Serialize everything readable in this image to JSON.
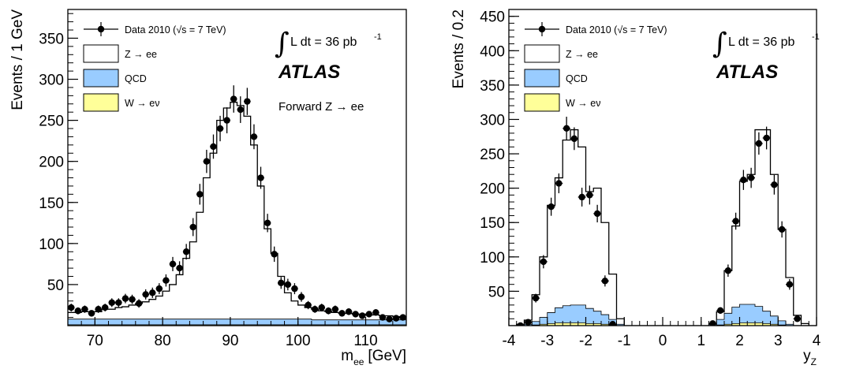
{
  "chart_data": [
    {
      "type": "histogram",
      "xlabel_main": "m",
      "xlabel_sub": "ee",
      "xlabel_unit": "[GeV]",
      "ylabel": "Events / 1 GeV",
      "xlim": [
        66,
        116
      ],
      "ylim": [
        0,
        385
      ],
      "xticks": [
        70,
        80,
        90,
        100,
        110
      ],
      "yticks": [
        50,
        100,
        150,
        200,
        250,
        300,
        350
      ],
      "grid": false,
      "legend_position": "top-left",
      "legend": [
        {
          "label": "Data 2010 (√s = 7 TeV)",
          "kind": "marker"
        },
        {
          "label": "Z → ee",
          "kind": "box",
          "color": "#ffffff"
        },
        {
          "label": "QCD",
          "kind": "box",
          "color": "#99ccff"
        },
        {
          "label": "W → eν",
          "kind": "box",
          "color": "#ffff99"
        }
      ],
      "lumi_integral": "∫",
      "lumi_text": "L dt = 36 pb",
      "lumi_exp": "-1",
      "experiment": "ATLAS",
      "region": "Forward Z → ee",
      "bin_edges": [
        66,
        67,
        68,
        69,
        70,
        71,
        72,
        73,
        74,
        75,
        76,
        77,
        78,
        79,
        80,
        81,
        82,
        83,
        84,
        85,
        86,
        87,
        88,
        89,
        90,
        91,
        92,
        93,
        94,
        95,
        96,
        97,
        98,
        99,
        100,
        101,
        102,
        103,
        104,
        105,
        106,
        107,
        108,
        109,
        110,
        111,
        112,
        113,
        114,
        115,
        116
      ],
      "mc_total": [
        16,
        16,
        17,
        17,
        17,
        20,
        20,
        22,
        23,
        25,
        27,
        29,
        32,
        36,
        42,
        50,
        62,
        82,
        102,
        138,
        180,
        210,
        250,
        265,
        272,
        268,
        255,
        220,
        170,
        118,
        88,
        60,
        40,
        30,
        25,
        22,
        20,
        18,
        17,
        16,
        15,
        15,
        14,
        14,
        13,
        13,
        12,
        12,
        11,
        10
      ],
      "qcd": [
        7,
        7,
        7,
        7,
        7,
        7,
        7,
        7,
        7,
        7,
        7,
        7,
        7,
        7,
        7,
        7,
        7,
        7,
        7,
        7,
        7,
        7,
        7,
        7,
        7,
        7,
        7,
        7,
        7,
        7,
        7,
        7,
        7,
        7,
        7,
        7,
        6,
        6,
        6,
        6,
        6,
        6,
        6,
        6,
        6,
        6,
        6,
        6,
        6,
        6
      ],
      "w_enu": [
        1,
        1,
        1,
        1,
        1,
        1,
        1,
        1,
        1,
        1,
        1,
        1,
        1,
        1,
        1,
        1,
        1,
        1,
        1,
        1,
        1,
        1,
        1,
        1,
        1,
        1,
        1,
        1,
        1,
        1,
        1,
        1,
        1,
        1,
        1,
        1,
        1,
        1,
        1,
        1,
        1,
        1,
        1,
        1,
        1,
        1,
        1,
        1,
        1,
        1
      ],
      "data_x": [
        66.5,
        67.5,
        68.5,
        69.5,
        70.5,
        71.5,
        72.5,
        73.5,
        74.5,
        75.5,
        76.5,
        77.5,
        78.5,
        79.5,
        80.5,
        81.5,
        82.5,
        83.5,
        84.5,
        85.5,
        86.5,
        87.5,
        88.5,
        89.5,
        90.5,
        91.5,
        92.5,
        93.5,
        94.5,
        95.5,
        96.5,
        97.5,
        98.5,
        99.5,
        100.5,
        101.5,
        102.5,
        103.5,
        104.5,
        105.5,
        106.5,
        107.5,
        108.5,
        109.5,
        110.5,
        111.5,
        112.5,
        113.5,
        114.5,
        115.5
      ],
      "data_y": [
        22,
        18,
        20,
        15,
        20,
        22,
        28,
        28,
        33,
        32,
        27,
        38,
        40,
        45,
        55,
        75,
        70,
        90,
        120,
        160,
        200,
        218,
        240,
        250,
        276,
        263,
        273,
        230,
        180,
        125,
        87,
        52,
        50,
        45,
        35,
        25,
        20,
        22,
        18,
        20,
        15,
        17,
        14,
        12,
        14,
        16,
        10,
        8,
        9,
        10
      ]
    },
    {
      "type": "histogram",
      "xlabel_main": "y",
      "xlabel_sub": "Z",
      "xlabel_unit": "",
      "ylabel": "Events / 0.2",
      "xlim": [
        -4,
        4
      ],
      "ylim": [
        0,
        460
      ],
      "xticks": [
        -4,
        -3,
        -2,
        -1,
        0,
        1,
        2,
        3,
        4
      ],
      "yticks": [
        50,
        100,
        150,
        200,
        250,
        300,
        350,
        400,
        450
      ],
      "grid": false,
      "legend_position": "top-left",
      "legend": [
        {
          "label": "Data 2010 (√s = 7 TeV)",
          "kind": "marker"
        },
        {
          "label": "Z → ee",
          "kind": "box",
          "color": "#ffffff"
        },
        {
          "label": "QCD",
          "kind": "box",
          "color": "#99ccff"
        },
        {
          "label": "W → eν",
          "kind": "box",
          "color": "#ffff99"
        }
      ],
      "lumi_integral": "∫",
      "lumi_text": "L dt = 36 pb",
      "lumi_exp": "-1",
      "experiment": "ATLAS",
      "bin_edges": [
        -4.0,
        -3.8,
        -3.6,
        -3.4,
        -3.2,
        -3.0,
        -2.8,
        -2.6,
        -2.4,
        -2.2,
        -2.0,
        -1.8,
        -1.6,
        -1.4,
        -1.2,
        -1.0,
        -0.8,
        -0.6,
        -0.4,
        -0.2,
        0.0,
        0.2,
        0.4,
        0.6,
        0.8,
        1.0,
        1.2,
        1.4,
        1.6,
        1.8,
        2.0,
        2.2,
        2.4,
        2.6,
        2.8,
        3.0,
        3.2,
        3.4,
        3.6,
        3.8,
        4.0
      ],
      "mc_total": [
        0,
        2,
        8,
        45,
        100,
        175,
        215,
        270,
        285,
        260,
        195,
        200,
        150,
        75,
        10,
        0,
        0,
        0,
        0,
        0,
        0,
        0,
        0,
        0,
        0,
        0,
        3,
        20,
        80,
        145,
        210,
        220,
        285,
        285,
        220,
        140,
        70,
        15,
        3,
        0
      ],
      "qcd": [
        0,
        0,
        2,
        5,
        10,
        16,
        22,
        25,
        26,
        26,
        22,
        18,
        14,
        8,
        2,
        0,
        0,
        0,
        0,
        0,
        0,
        0,
        0,
        0,
        0,
        0,
        2,
        8,
        16,
        24,
        27,
        27,
        24,
        18,
        12,
        6,
        2,
        0,
        0,
        0
      ],
      "w_enu": [
        0,
        0,
        0,
        1,
        2,
        3,
        4,
        4,
        4,
        4,
        3,
        3,
        2,
        1,
        0,
        0,
        0,
        0,
        0,
        0,
        0,
        0,
        0,
        0,
        0,
        0,
        0,
        1,
        2,
        3,
        4,
        4,
        4,
        3,
        2,
        1,
        0,
        0,
        0,
        0
      ],
      "data_x": [
        -3.7,
        -3.5,
        -3.3,
        -3.1,
        -2.9,
        -2.7,
        -2.5,
        -2.3,
        -2.1,
        -1.9,
        -1.7,
        -1.5,
        -1.3,
        1.3,
        1.5,
        1.7,
        1.9,
        2.1,
        2.3,
        2.5,
        2.7,
        2.9,
        3.1,
        3.3,
        3.5
      ],
      "data_y": [
        0,
        5,
        40,
        93,
        173,
        207,
        287,
        272,
        187,
        190,
        163,
        65,
        2,
        3,
        22,
        80,
        152,
        212,
        215,
        265,
        273,
        205,
        140,
        60,
        10
      ]
    }
  ]
}
